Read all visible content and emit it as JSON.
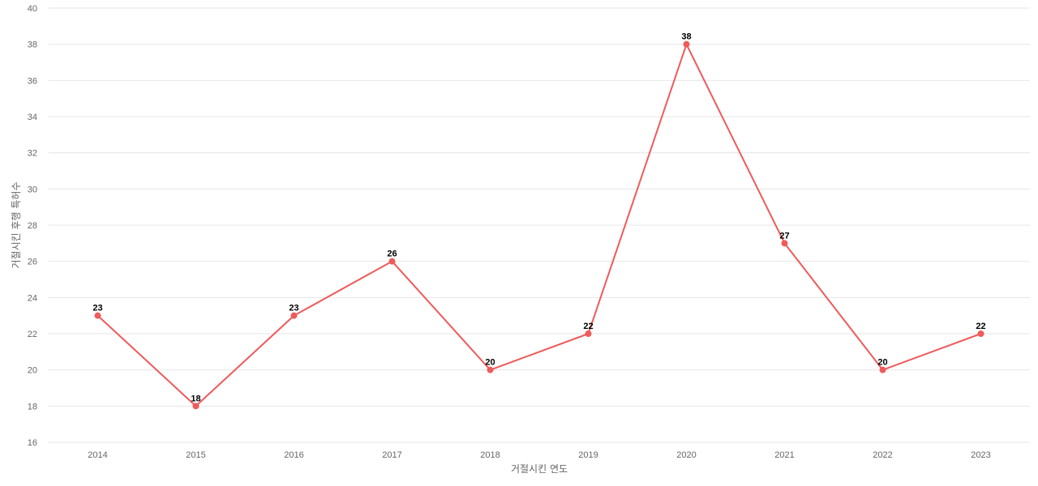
{
  "chart_data": {
    "type": "line",
    "categories": [
      "2014",
      "2015",
      "2016",
      "2017",
      "2018",
      "2019",
      "2020",
      "2021",
      "2022",
      "2023"
    ],
    "series": [
      {
        "values": [
          23,
          18,
          23,
          26,
          20,
          22,
          38,
          27,
          20,
          22
        ]
      }
    ],
    "xlabel": "거절시킨 연도",
    "ylabel": "거절시킨 후행 특허수",
    "ylim": [
      16,
      40
    ],
    "yticks": [
      16,
      18,
      20,
      22,
      24,
      26,
      28,
      30,
      32,
      34,
      36,
      38,
      40
    ],
    "grid": true,
    "data_labels": true,
    "colors": {
      "series": "#ef5a5a",
      "grid": "#e6e6e6"
    }
  }
}
